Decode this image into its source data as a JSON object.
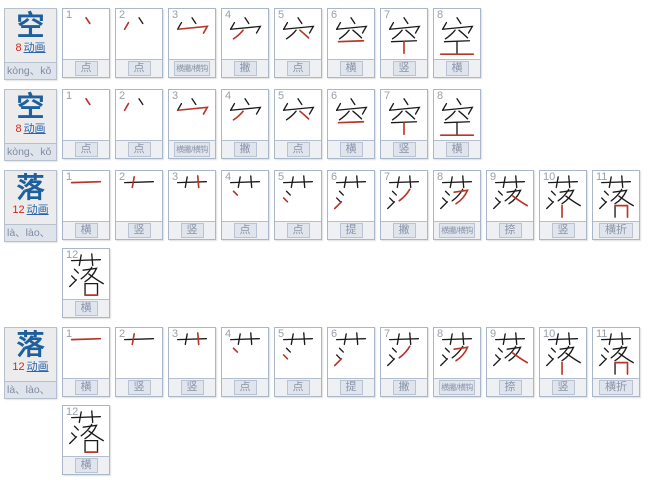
{
  "colors": {
    "char_blue": "#1e5f9e",
    "link_blue": "#2a64ad",
    "count_red": "#d2281e",
    "stroke_black": "#1a1a1a",
    "stroke_red": "#b8352a",
    "box_border": "#a9b7c8"
  },
  "entries": [
    {
      "character": "空",
      "stroke_count": "8",
      "animation_label": "动画",
      "pinyin": "kòng、kǒ",
      "strokes": [
        {
          "num": "1",
          "label": "点"
        },
        {
          "num": "2",
          "label": "点"
        },
        {
          "num": "3",
          "label": "横撇/横钩"
        },
        {
          "num": "4",
          "label": "撇"
        },
        {
          "num": "5",
          "label": "点"
        },
        {
          "num": "6",
          "label": "横"
        },
        {
          "num": "7",
          "label": "竖"
        },
        {
          "num": "8",
          "label": "横"
        }
      ]
    },
    {
      "character": "空",
      "stroke_count": "8",
      "animation_label": "动画",
      "pinyin": "kòng、kǒ",
      "strokes": [
        {
          "num": "1",
          "label": "点"
        },
        {
          "num": "2",
          "label": "点"
        },
        {
          "num": "3",
          "label": "横撇/横钩"
        },
        {
          "num": "4",
          "label": "撇"
        },
        {
          "num": "5",
          "label": "点"
        },
        {
          "num": "6",
          "label": "横"
        },
        {
          "num": "7",
          "label": "竖"
        },
        {
          "num": "8",
          "label": "横"
        }
      ]
    },
    {
      "character": "落",
      "stroke_count": "12",
      "animation_label": "动画",
      "pinyin": "là、lào、",
      "strokes": [
        {
          "num": "1",
          "label": "横"
        },
        {
          "num": "2",
          "label": "竖"
        },
        {
          "num": "3",
          "label": "竖"
        },
        {
          "num": "4",
          "label": "点"
        },
        {
          "num": "5",
          "label": "点"
        },
        {
          "num": "6",
          "label": "提"
        },
        {
          "num": "7",
          "label": "撇"
        },
        {
          "num": "8",
          "label": "横撇/横钩"
        },
        {
          "num": "9",
          "label": "捺"
        },
        {
          "num": "10",
          "label": "竖"
        },
        {
          "num": "11",
          "label": "横折"
        },
        {
          "num": "12",
          "label": "横"
        }
      ]
    },
    {
      "character": "落",
      "stroke_count": "12",
      "animation_label": "动画",
      "pinyin": "là、lào、",
      "strokes": [
        {
          "num": "1",
          "label": "横"
        },
        {
          "num": "2",
          "label": "竖"
        },
        {
          "num": "3",
          "label": "竖"
        },
        {
          "num": "4",
          "label": "点"
        },
        {
          "num": "5",
          "label": "点"
        },
        {
          "num": "6",
          "label": "提"
        },
        {
          "num": "7",
          "label": "撇"
        },
        {
          "num": "8",
          "label": "横撇/横钩"
        },
        {
          "num": "9",
          "label": "捺"
        },
        {
          "num": "10",
          "label": "竖"
        },
        {
          "num": "11",
          "label": "横折"
        },
        {
          "num": "12",
          "label": "横"
        }
      ]
    }
  ]
}
